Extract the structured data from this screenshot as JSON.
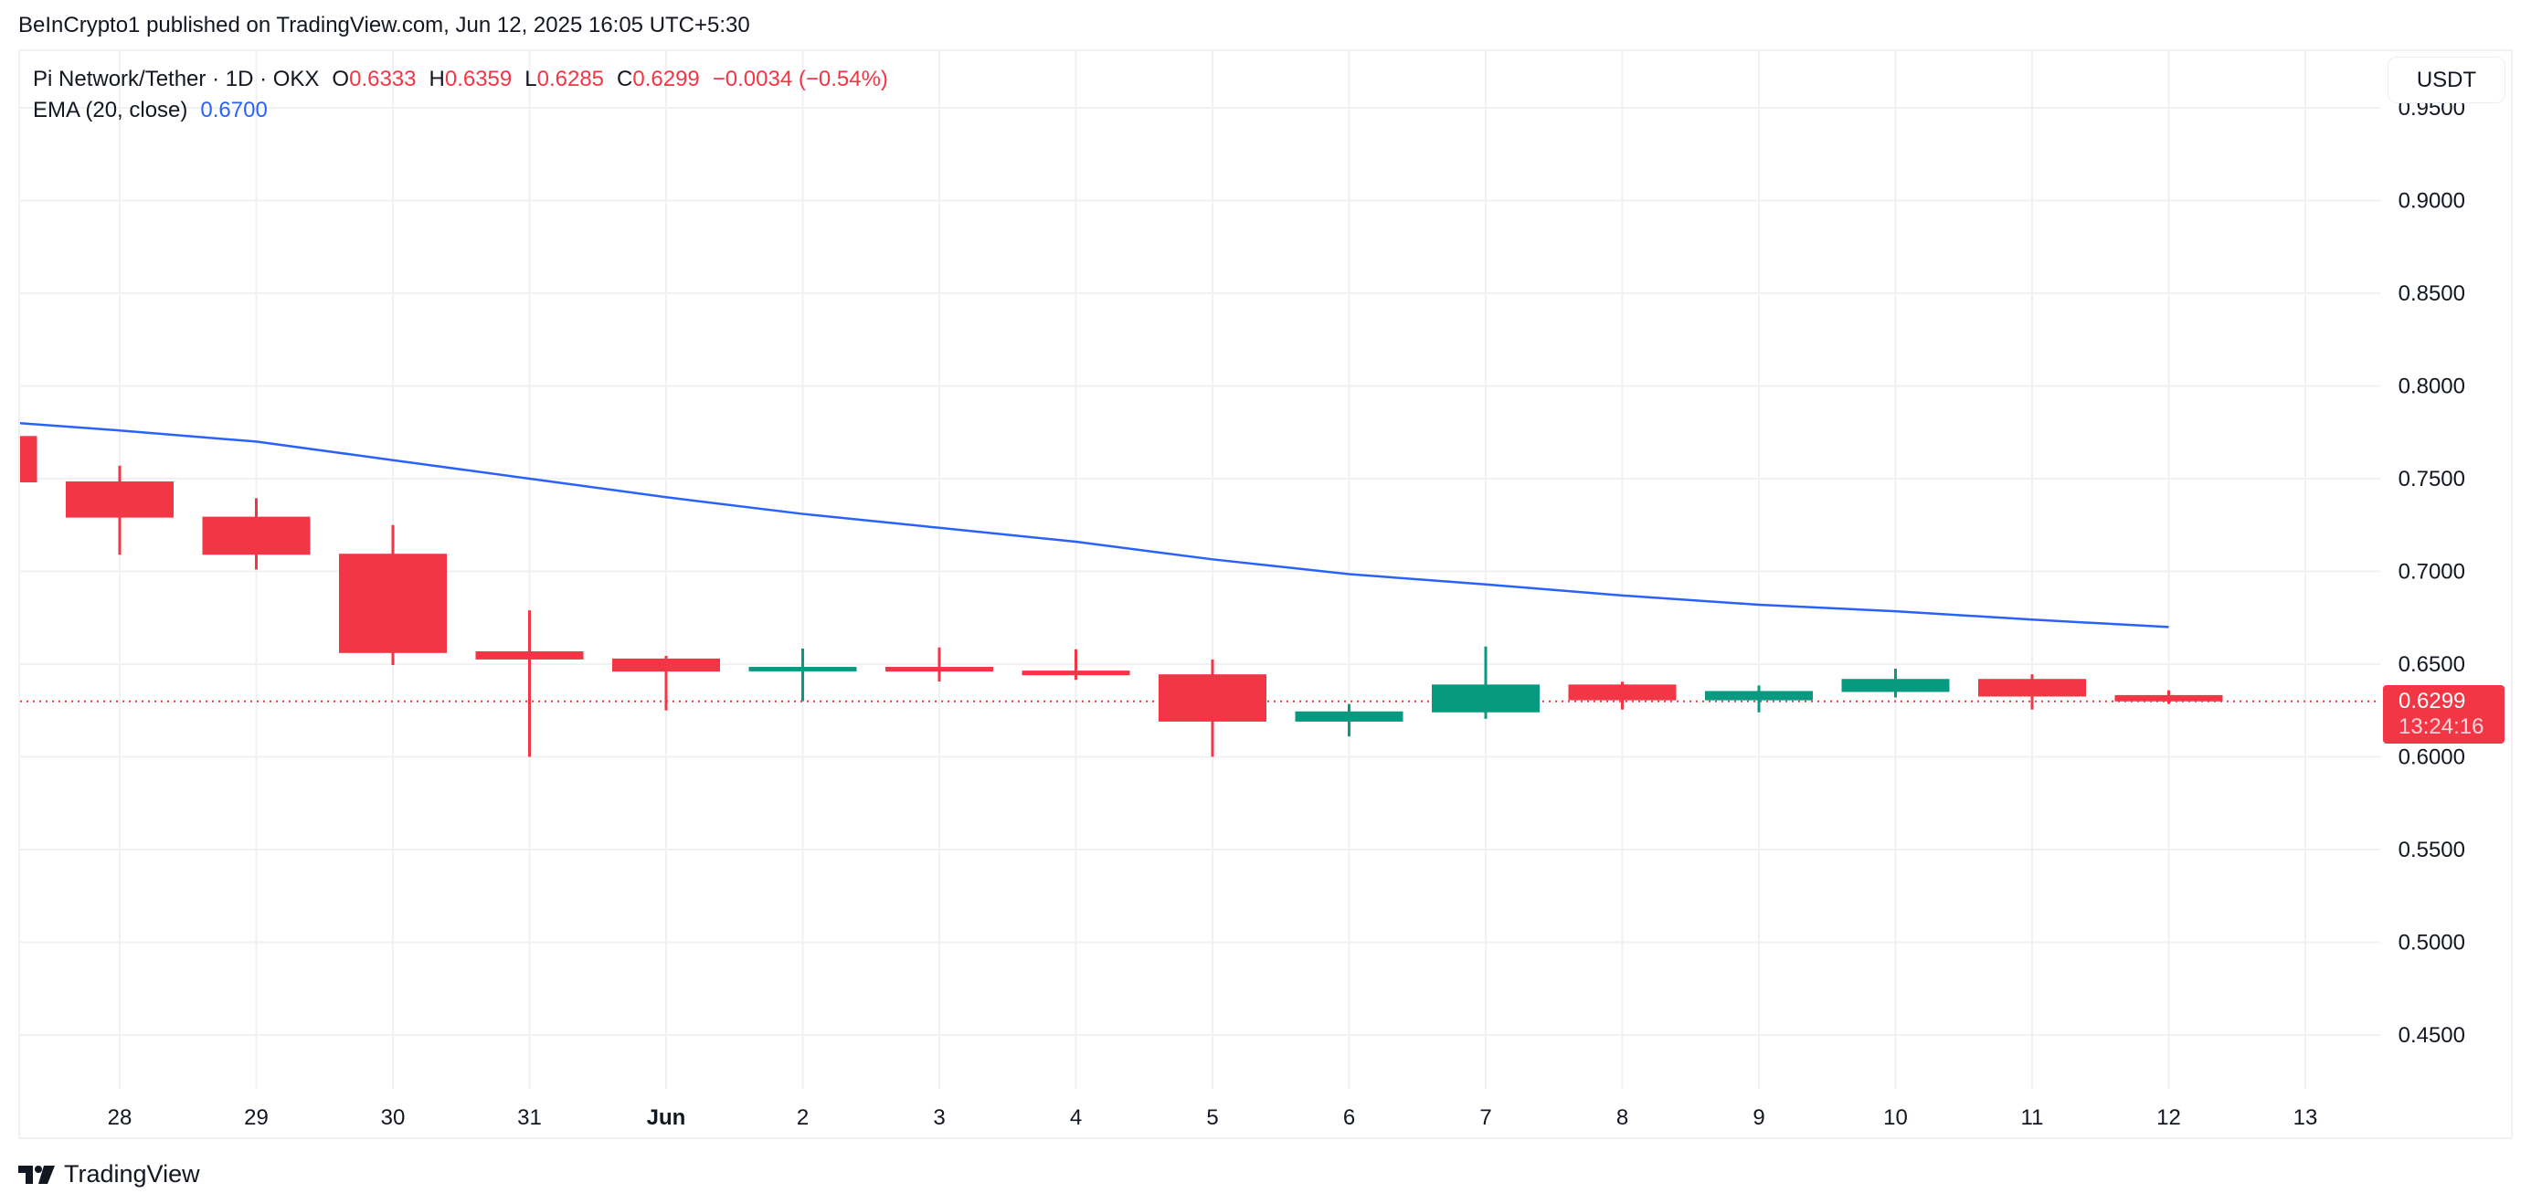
{
  "published": "BeInCrypto1 published on TradingView.com, Jun 12, 2025 16:05 UTC+5:30",
  "legend": {
    "symbol": "Pi Network/Tether · 1D · OKX",
    "o_label": "O",
    "o": "0.6333",
    "h_label": "H",
    "h": "0.6359",
    "l_label": "L",
    "l": "0.6285",
    "c_label": "C",
    "c": "0.6299",
    "change": "−0.0034 (−0.54%)",
    "ema_label": "EMA (20, close)",
    "ema_value": "0.6700"
  },
  "currency_button": "USDT",
  "last_price": {
    "value": "0.6299",
    "countdown": "13:24:16"
  },
  "branding": {
    "name": "TradingView"
  },
  "colors": {
    "up": "#089981",
    "down": "#F23645",
    "ema": "#2962FF",
    "grid": "#f0f1f3",
    "text": "#131722"
  },
  "chart_data": {
    "type": "candlestick",
    "title": "Pi Network/Tether · 1D · OKX",
    "xlabel": "",
    "ylabel": "USDT",
    "ylim": [
      0.42,
      0.98
    ],
    "y_ticks": [
      "0.9500",
      "0.9000",
      "0.8500",
      "0.8000",
      "0.7500",
      "0.7000",
      "0.6500",
      "0.6000",
      "0.5500",
      "0.5000",
      "0.4500"
    ],
    "x_ticks": [
      "28",
      "29",
      "30",
      "31",
      "Jun",
      "2",
      "3",
      "4",
      "5",
      "6",
      "7",
      "8",
      "9",
      "10",
      "11",
      "12",
      "13"
    ],
    "grid": true,
    "candles": [
      {
        "date": "27",
        "open": 0.773,
        "high": 0.776,
        "low": 0.745,
        "close": 0.748
      },
      {
        "date": "28",
        "open": 0.7485,
        "high": 0.757,
        "low": 0.709,
        "close": 0.729
      },
      {
        "date": "29",
        "open": 0.7295,
        "high": 0.7395,
        "low": 0.701,
        "close": 0.709
      },
      {
        "date": "30",
        "open": 0.7095,
        "high": 0.725,
        "low": 0.6495,
        "close": 0.656
      },
      {
        "date": "31",
        "open": 0.6569,
        "high": 0.679,
        "low": 0.6,
        "close": 0.6525
      },
      {
        "date": "Jun 1",
        "open": 0.653,
        "high": 0.6545,
        "low": 0.625,
        "close": 0.646
      },
      {
        "date": "2",
        "open": 0.6461,
        "high": 0.6584,
        "low": 0.63,
        "close": 0.6485
      },
      {
        "date": "3",
        "open": 0.6485,
        "high": 0.659,
        "low": 0.6406,
        "close": 0.646
      },
      {
        "date": "4",
        "open": 0.6465,
        "high": 0.658,
        "low": 0.6415,
        "close": 0.644
      },
      {
        "date": "5",
        "open": 0.6445,
        "high": 0.6525,
        "low": 0.6,
        "close": 0.619
      },
      {
        "date": "6",
        "open": 0.619,
        "high": 0.6285,
        "low": 0.611,
        "close": 0.6245
      },
      {
        "date": "7",
        "open": 0.624,
        "high": 0.6595,
        "low": 0.6205,
        "close": 0.639
      },
      {
        "date": "8",
        "open": 0.639,
        "high": 0.6405,
        "low": 0.6255,
        "close": 0.6305
      },
      {
        "date": "9",
        "open": 0.6305,
        "high": 0.6385,
        "low": 0.624,
        "close": 0.6355
      },
      {
        "date": "10",
        "open": 0.635,
        "high": 0.6475,
        "low": 0.632,
        "close": 0.642
      },
      {
        "date": "11",
        "open": 0.642,
        "high": 0.6445,
        "low": 0.6255,
        "close": 0.6325
      },
      {
        "date": "12",
        "open": 0.6333,
        "high": 0.6359,
        "low": 0.6285,
        "close": 0.6299
      }
    ],
    "series": [
      {
        "name": "EMA (20, close)",
        "type": "line",
        "x": [
          "27",
          "28",
          "29",
          "30",
          "31",
          "Jun 1",
          "2",
          "3",
          "4",
          "5",
          "6",
          "7",
          "8",
          "9",
          "10",
          "11",
          "12"
        ],
        "values": [
          0.78,
          0.776,
          0.77,
          0.76,
          0.75,
          0.74,
          0.731,
          0.7235,
          0.716,
          0.7065,
          0.6985,
          0.693,
          0.687,
          0.682,
          0.6785,
          0.674,
          0.67
        ]
      }
    ],
    "last_price_line": 0.6299
  }
}
